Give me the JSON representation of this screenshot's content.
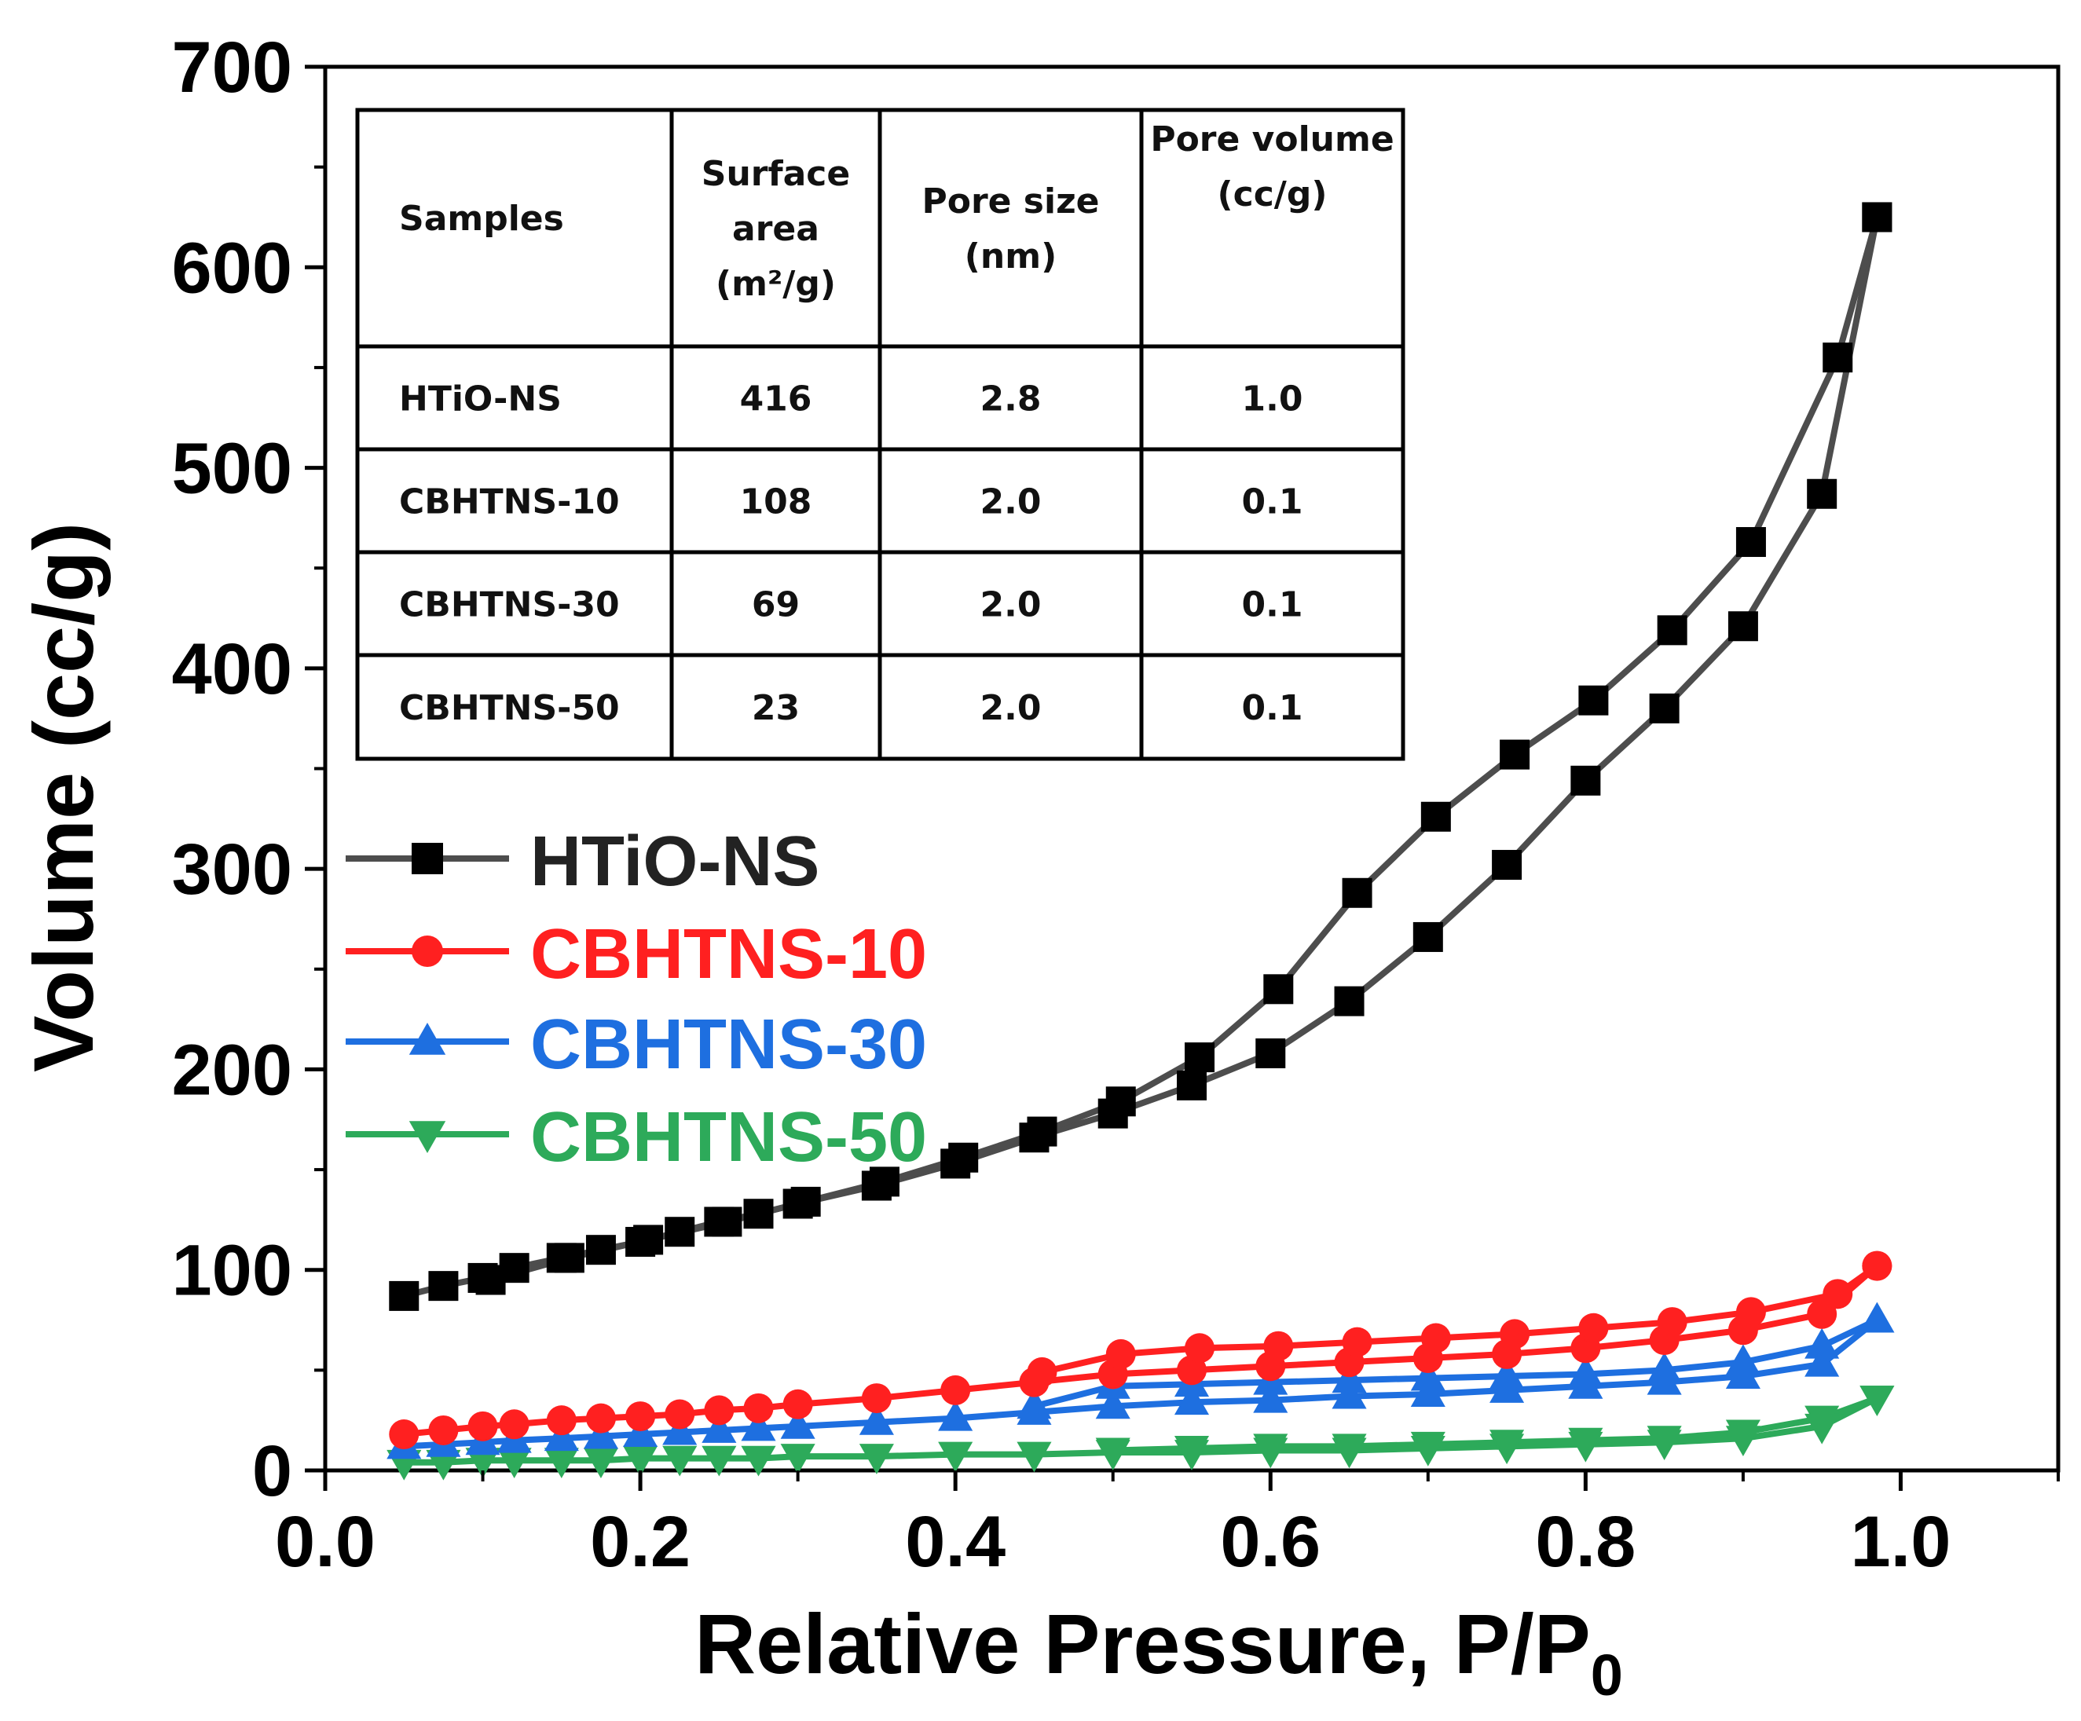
{
  "chart_data": {
    "type": "line",
    "xlabel_main": "Relative Pressure, P/P",
    "xlabel_sub": "0",
    "ylabel": "Volume (cc/g)",
    "xlim": [
      0.0,
      1.1
    ],
    "ylim": [
      0,
      700
    ],
    "x_ticks": [
      "0.0",
      "0.2",
      "0.4",
      "0.6",
      "0.8",
      "1.0"
    ],
    "y_ticks": [
      "0",
      "100",
      "200",
      "300",
      "400",
      "500",
      "600",
      "700"
    ],
    "legend_position": "middle-left",
    "series": [
      {
        "name": "HTiO-NS",
        "color": "#4d4d4d",
        "marker": "square",
        "adsorption": {
          "x": [
            0.05,
            0.075,
            0.1,
            0.12,
            0.15,
            0.175,
            0.2,
            0.225,
            0.25,
            0.275,
            0.3,
            0.35,
            0.4,
            0.45,
            0.5,
            0.55,
            0.6,
            0.65,
            0.7,
            0.75,
            0.8,
            0.85,
            0.9,
            0.95,
            0.985
          ],
          "y": [
            87,
            92,
            96,
            101,
            106,
            110,
            114,
            119,
            124,
            128,
            133,
            142,
            153,
            166,
            178,
            192,
            208,
            234,
            266,
            302,
            344,
            380,
            421,
            487,
            625
          ]
        },
        "desorption": {
          "x": [
            0.985,
            0.96,
            0.905,
            0.855,
            0.805,
            0.755,
            0.705,
            0.655,
            0.605,
            0.555,
            0.505,
            0.455,
            0.405,
            0.355,
            0.305,
            0.255,
            0.205,
            0.155,
            0.105
          ],
          "y": [
            625,
            555,
            463,
            419,
            384,
            357,
            326,
            288,
            240,
            206,
            184,
            169,
            156,
            144,
            134,
            124,
            115,
            106,
            95
          ]
        }
      },
      {
        "name": "CBHTNS-10",
        "color": "#ff2020",
        "marker": "circle",
        "adsorption": {
          "x": [
            0.05,
            0.075,
            0.1,
            0.12,
            0.15,
            0.175,
            0.2,
            0.225,
            0.25,
            0.275,
            0.3,
            0.35,
            0.4,
            0.45,
            0.5,
            0.55,
            0.6,
            0.65,
            0.7,
            0.75,
            0.8,
            0.85,
            0.9,
            0.95,
            0.985
          ],
          "y": [
            18,
            20,
            22,
            23,
            25,
            26,
            27,
            28,
            30,
            31,
            33,
            36,
            40,
            44,
            48,
            50,
            52,
            54,
            56,
            58,
            61,
            65,
            70,
            78,
            102
          ]
        },
        "desorption": {
          "x": [
            0.985,
            0.96,
            0.905,
            0.855,
            0.805,
            0.755,
            0.705,
            0.655,
            0.605,
            0.555,
            0.505,
            0.455
          ],
          "y": [
            102,
            88,
            79,
            74,
            71,
            68,
            66,
            64,
            62,
            61,
            58,
            49
          ]
        }
      },
      {
        "name": "CBHTNS-30",
        "color": "#1e6fe0",
        "marker": "triangle-up",
        "adsorption": {
          "x": [
            0.05,
            0.075,
            0.1,
            0.12,
            0.15,
            0.175,
            0.2,
            0.225,
            0.25,
            0.275,
            0.3,
            0.35,
            0.4,
            0.45,
            0.5,
            0.55,
            0.6,
            0.65,
            0.7,
            0.75,
            0.8,
            0.85,
            0.9,
            0.95,
            0.985
          ],
          "y": [
            12,
            13,
            14,
            15,
            16,
            17,
            18,
            19,
            20,
            21,
            22,
            24,
            26,
            29,
            32,
            34,
            35,
            37,
            38,
            40,
            42,
            44,
            47,
            53,
            75
          ]
        },
        "desorption": {
          "x": [
            0.985,
            0.95,
            0.9,
            0.85,
            0.8,
            0.75,
            0.7,
            0.65,
            0.6,
            0.55,
            0.5,
            0.45
          ],
          "y": [
            75,
            62,
            54,
            50,
            48,
            47,
            46,
            45,
            44,
            43,
            42,
            32
          ]
        }
      },
      {
        "name": "CBHTNS-50",
        "color": "#2daa5a",
        "marker": "triangle-down",
        "adsorption": {
          "x": [
            0.05,
            0.075,
            0.1,
            0.12,
            0.15,
            0.175,
            0.2,
            0.225,
            0.25,
            0.275,
            0.3,
            0.35,
            0.4,
            0.45,
            0.5,
            0.55,
            0.6,
            0.65,
            0.7,
            0.75,
            0.8,
            0.85,
            0.9,
            0.95,
            0.985
          ],
          "y": [
            4,
            4,
            5,
            5,
            5,
            5,
            6,
            6,
            6,
            6,
            7,
            7,
            8,
            8,
            9,
            9,
            10,
            10,
            11,
            12,
            13,
            14,
            16,
            22,
            36
          ]
        },
        "desorption": {
          "x": [
            0.985,
            0.95,
            0.9,
            0.85,
            0.8,
            0.75,
            0.7,
            0.65,
            0.6,
            0.55,
            0.5
          ],
          "y": [
            36,
            26,
            19,
            16,
            15,
            14,
            13,
            12,
            12,
            11,
            10
          ]
        }
      }
    ]
  },
  "table": {
    "headers": [
      "Samples",
      "Surface area (m²/g)",
      "Pore size (nm)",
      "Pore volume (cc/g)"
    ],
    "header_lines": [
      [
        "Samples"
      ],
      [
        "Surface",
        "area",
        "(m²/g)"
      ],
      [
        "Pore size",
        "(nm)"
      ],
      [
        "Pore volume",
        "(cc/g)"
      ]
    ],
    "rows": [
      [
        "HTiO-NS",
        "416",
        "2.8",
        "1.0"
      ],
      [
        "CBHTNS-10",
        "108",
        "2.0",
        "0.1"
      ],
      [
        "CBHTNS-30",
        "69",
        "2.0",
        "0.1"
      ],
      [
        "CBHTNS-50",
        "23",
        "2.0",
        "0.1"
      ]
    ]
  }
}
